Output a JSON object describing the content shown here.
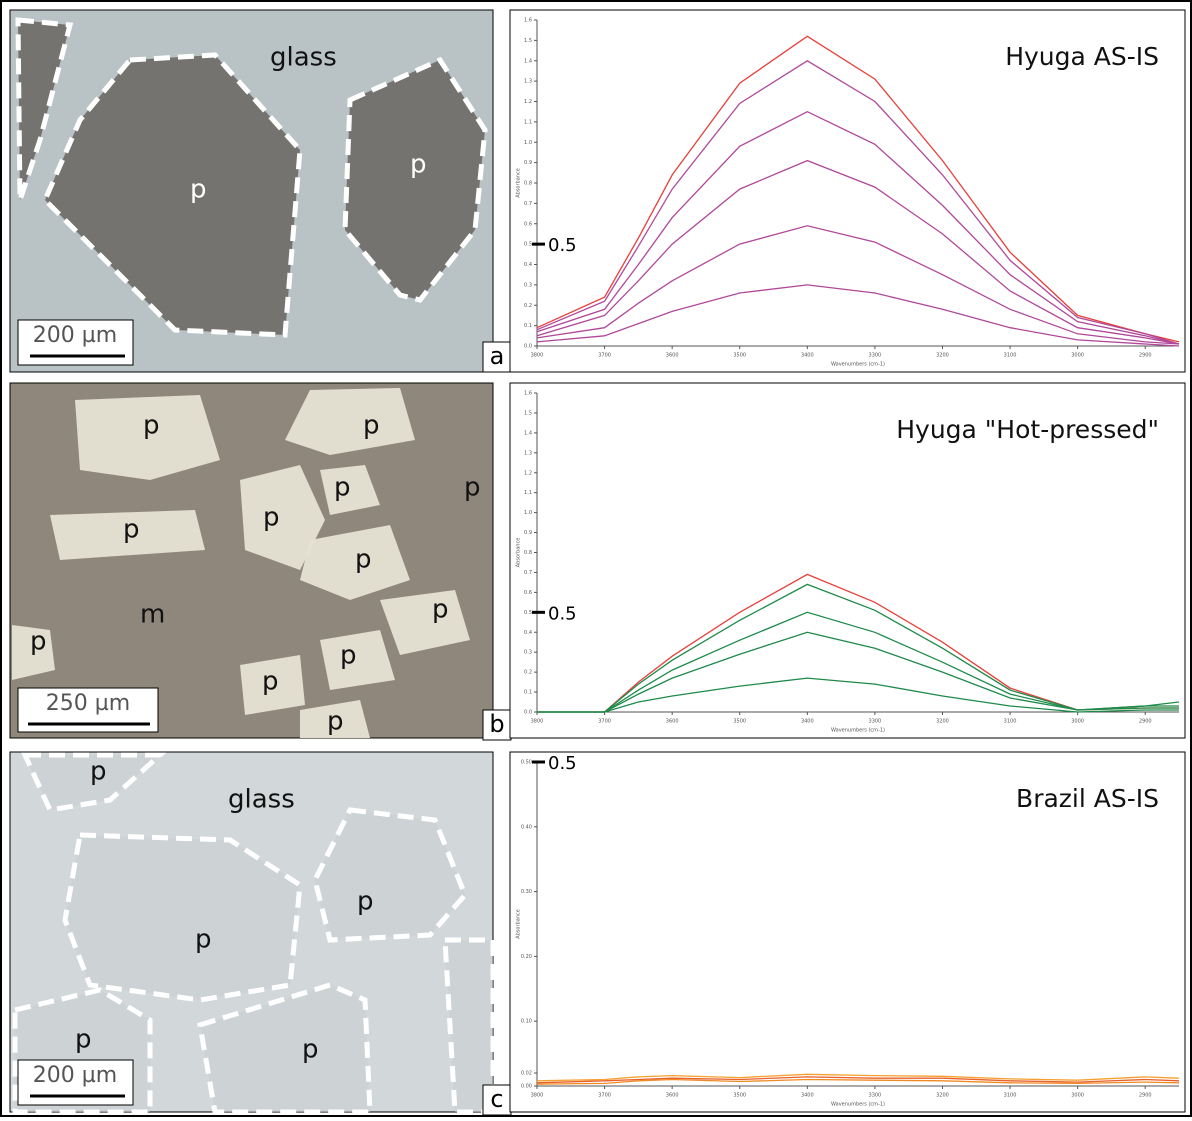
{
  "panels": [
    {
      "letter": "a",
      "scale_bar": "200 µm",
      "image_labels": [
        "glass",
        "p",
        "p"
      ],
      "chart": {
        "type": "line",
        "title": "Hyuga AS-IS",
        "ylabel": "Absorbance",
        "xlabel": "Wavenumbers (cm-1)",
        "x": [
          3800,
          3700,
          3650,
          3600,
          3500,
          3400,
          3300,
          3200,
          3100,
          3000,
          2900,
          2850
        ],
        "xlim": [
          3800,
          2850
        ],
        "xticks": [
          3800,
          3700,
          3600,
          3500,
          3400,
          3300,
          3200,
          3100,
          3000,
          2900
        ],
        "ylim": [
          0,
          1.6
        ],
        "yticks": [
          {
            "value": 0,
            "label": "0.0"
          },
          0.1,
          0.2,
          0.3,
          0.4,
          0.5,
          0.6,
          0.7,
          0.8,
          0.9,
          {
            "value": 1,
            "label": "1.0"
          },
          1.1,
          1.2,
          1.3,
          1.4,
          1.5,
          1.6
        ],
        "marker": 0.5,
        "series": [
          {
            "color": "#e8403a",
            "values": [
              0.09,
              0.24,
              0.53,
              0.84,
              1.29,
              1.52,
              1.31,
              0.91,
              0.46,
              0.15,
              0.06,
              0.02
            ]
          },
          {
            "color": "#b0489a",
            "values": [
              0.08,
              0.22,
              0.49,
              0.77,
              1.19,
              1.4,
              1.2,
              0.84,
              0.42,
              0.14,
              0.06,
              0.01
            ]
          },
          {
            "color": "#b0489a",
            "values": [
              0.07,
              0.18,
              0.4,
              0.63,
              0.98,
              1.15,
              0.99,
              0.69,
              0.35,
              0.12,
              0.05,
              0.01
            ]
          },
          {
            "color": "#b0489a",
            "values": [
              0.05,
              0.15,
              0.32,
              0.5,
              0.77,
              0.91,
              0.78,
              0.55,
              0.27,
              0.09,
              0.04,
              0.01
            ]
          },
          {
            "color": "#b0489a",
            "values": [
              0.04,
              0.09,
              0.21,
              0.32,
              0.5,
              0.59,
              0.51,
              0.35,
              0.18,
              0.06,
              0.02,
              0.01
            ]
          },
          {
            "color": "#b0489a",
            "values": [
              0.02,
              0.05,
              0.11,
              0.17,
              0.26,
              0.3,
              0.26,
              0.18,
              0.09,
              0.03,
              0.01,
              0
            ]
          }
        ]
      }
    },
    {
      "letter": "b",
      "scale_bar": "250 µm",
      "image_labels": [
        "p",
        "p",
        "p",
        "p",
        "p",
        "p",
        "p",
        "m",
        "p",
        "p",
        "p",
        "p",
        "p"
      ],
      "chart": {
        "type": "line",
        "title": "Hyuga \"Hot-pressed\"",
        "ylabel": "Absorbance",
        "xlabel": "Wavenumbers (cm-1)",
        "x": [
          3800,
          3700,
          3650,
          3600,
          3500,
          3400,
          3300,
          3200,
          3100,
          3000,
          2900,
          2850
        ],
        "xlim": [
          3800,
          2850
        ],
        "xticks": [
          3800,
          3700,
          3600,
          3500,
          3400,
          3300,
          3200,
          3100,
          3000,
          2900
        ],
        "ylim": [
          0,
          1.6
        ],
        "yticks": [
          {
            "value": 0,
            "label": "0.0"
          },
          0.1,
          0.2,
          0.3,
          0.4,
          0.5,
          0.6,
          0.7,
          0.8,
          0.9,
          {
            "value": 1,
            "label": "1.0"
          },
          1.1,
          1.2,
          1.3,
          1.4,
          1.5,
          1.6
        ],
        "marker": 0.5,
        "series": [
          {
            "color": "#e8403a",
            "values": [
              0,
              0,
              0.15,
              0.28,
              0.5,
              0.69,
              0.55,
              0.35,
              0.12,
              0.01,
              0.02,
              0.02
            ]
          },
          {
            "color": "#1e8a4a",
            "values": [
              0,
              0,
              0.14,
              0.26,
              0.46,
              0.64,
              0.51,
              0.32,
              0.11,
              0.01,
              0.03,
              0.05
            ]
          },
          {
            "color": "#1e8a4a",
            "values": [
              0,
              0,
              0.11,
              0.21,
              0.36,
              0.5,
              0.4,
              0.25,
              0.09,
              0.01,
              0.03,
              0.03
            ]
          },
          {
            "color": "#1e8a4a",
            "values": [
              0,
              0,
              0.09,
              0.17,
              0.29,
              0.4,
              0.32,
              0.2,
              0.07,
              0.01,
              0.02,
              0.02
            ]
          },
          {
            "color": "#1e8a4a",
            "values": [
              0,
              0,
              0.05,
              0.08,
              0.13,
              0.17,
              0.14,
              0.08,
              0.03,
              0,
              0.01,
              0.01
            ]
          }
        ]
      }
    },
    {
      "letter": "c",
      "scale_bar": "200 µm",
      "image_labels": [
        "p",
        "glass",
        "p",
        "p",
        "p",
        "p"
      ],
      "chart": {
        "type": "line",
        "title": "Brazil AS-IS",
        "ylabel": "Absorbance",
        "xlabel": "Wavenumbers (cm-1)",
        "x": [
          3800,
          3700,
          3650,
          3600,
          3500,
          3400,
          3300,
          3200,
          3100,
          3000,
          2900,
          2850
        ],
        "xlim": [
          3800,
          2850
        ],
        "xticks": [
          3800,
          3700,
          3600,
          3500,
          3400,
          3300,
          3200,
          3100,
          3000,
          2900
        ],
        "ylim": [
          0,
          0.5
        ],
        "yticks": [
          {
            "value": 0,
            "label": "0.00"
          },
          {
            "value": 0.02,
            "label": "0.02"
          },
          {
            "value": 0.1,
            "label": "0.10"
          },
          {
            "value": 0.2,
            "label": "0.20"
          },
          {
            "value": 0.3,
            "label": "0.30"
          },
          {
            "value": 0.4,
            "label": "0.40"
          },
          {
            "value": 0.5,
            "label": "0.50"
          }
        ],
        "marker": 0.5,
        "series": [
          {
            "color": "#e8602a",
            "values": [
              0.005,
              0.008,
              0.01,
              0.012,
              0.01,
              0.014,
              0.012,
              0.012,
              0.008,
              0.006,
              0.01,
              0.008
            ]
          },
          {
            "color": "#f08a24",
            "values": [
              0.003,
              0.004,
              0.008,
              0.01,
              0.007,
              0.01,
              0.009,
              0.008,
              0.005,
              0.004,
              0.006,
              0.005
            ]
          },
          {
            "color": "#f5a030",
            "values": [
              0.008,
              0.01,
              0.014,
              0.016,
              0.013,
              0.018,
              0.016,
              0.015,
              0.011,
              0.009,
              0.014,
              0.012
            ]
          }
        ]
      }
    }
  ]
}
